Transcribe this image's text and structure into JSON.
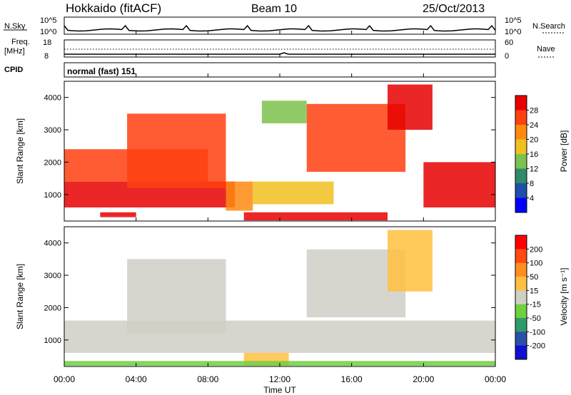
{
  "header": {
    "station": "Hokkaido (fitACF)",
    "beam": "Beam 10",
    "date": "25/Oct/2013"
  },
  "top_panels": {
    "nsky_label": "N.Sky",
    "nsky_ticks": [
      "10^5",
      "10^0"
    ],
    "nsearch_label": "N.Search",
    "freq_label": "Freq.",
    "freq_unit": "[MHz]",
    "freq_ticks": [
      "18",
      "8"
    ],
    "nave_label": "Nave",
    "nave_ticks": [
      "60",
      "0"
    ],
    "cpid_label": "CPID",
    "cpid_value": "normal (fast) 151"
  },
  "axes": {
    "ylabel": "Slant Range [km]",
    "xlabel": "Time UT",
    "yticks": [
      "1000",
      "2000",
      "3000",
      "4000"
    ],
    "xticks": [
      "00:00",
      "04:00",
      "08:00",
      "12:00",
      "16:00",
      "20:00",
      "00:00"
    ]
  },
  "colorbars": {
    "power_label": "Power [dB]",
    "power_ticks": [
      "28",
      "24",
      "20",
      "16",
      "12",
      "8",
      "4"
    ],
    "power_colors": [
      "#0000ff",
      "#1f4faa",
      "#2f8a6a",
      "#7cc24e",
      "#f0c020",
      "#ff8a10",
      "#ff4010",
      "#e80000"
    ],
    "velocity_label": "Velocity [m s⁻¹]",
    "velocity_ticks": [
      "200",
      "100",
      "50",
      "15",
      "-15",
      "-50",
      "-100",
      "-200"
    ],
    "velocity_colors": [
      "#ff0000",
      "#ff4a10",
      "#ff9020",
      "#ffc040",
      "#cfcfc6",
      "#6fd040",
      "#2f9a6a",
      "#2a50aa",
      "#1010d0"
    ]
  },
  "chart_data": [
    {
      "type": "heatmap",
      "name": "power",
      "xlim": [
        0,
        24
      ],
      "ylim": [
        180,
        4500
      ],
      "zlim": [
        0,
        30
      ],
      "regions": [
        {
          "t0": 0.0,
          "t1": 9.5,
          "r0": 600,
          "r1": 1400,
          "v": 28
        },
        {
          "t0": 0.0,
          "t1": 8.0,
          "r0": 1400,
          "r1": 2400,
          "v": 24
        },
        {
          "t0": 3.5,
          "t1": 9.0,
          "r0": 1200,
          "r1": 3500,
          "v": 26
        },
        {
          "t0": 9.0,
          "t1": 10.5,
          "r0": 500,
          "r1": 1400,
          "v": 20
        },
        {
          "t0": 10.5,
          "t1": 15.0,
          "r0": 700,
          "r1": 1400,
          "v": 18
        },
        {
          "t0": 11.0,
          "t1": 13.5,
          "r0": 3200,
          "r1": 3900,
          "v": 12
        },
        {
          "t0": 13.5,
          "t1": 19.0,
          "r0": 1700,
          "r1": 3800,
          "v": 26
        },
        {
          "t0": 18.0,
          "t1": 20.5,
          "r0": 3000,
          "r1": 4400,
          "v": 27
        },
        {
          "t0": 20.0,
          "t1": 24.0,
          "r0": 600,
          "r1": 2000,
          "v": 28
        },
        {
          "t0": 2.0,
          "t1": 4.0,
          "r0": 300,
          "r1": 450,
          "v": 28
        },
        {
          "t0": 10.0,
          "t1": 18.0,
          "r0": 200,
          "r1": 450,
          "v": 28
        }
      ]
    },
    {
      "type": "heatmap",
      "name": "velocity",
      "xlim": [
        0,
        24
      ],
      "ylim": [
        180,
        4500
      ],
      "zlim": [
        -200,
        200
      ],
      "regions": [
        {
          "t0": 0.0,
          "t1": 24.0,
          "r0": 600,
          "r1": 1600,
          "v": 0
        },
        {
          "t0": 3.5,
          "t1": 9.0,
          "r0": 1200,
          "r1": 3500,
          "v": 0
        },
        {
          "t0": 13.5,
          "t1": 19.0,
          "r0": 1700,
          "r1": 3800,
          "v": 0
        },
        {
          "t0": 18.0,
          "t1": 20.5,
          "r0": 2500,
          "r1": 4400,
          "v": 30
        },
        {
          "t0": 10.0,
          "t1": 12.5,
          "r0": 200,
          "r1": 600,
          "v": 30
        },
        {
          "t0": 0.0,
          "t1": 24.0,
          "r0": 200,
          "r1": 350,
          "v": -60
        }
      ]
    }
  ]
}
